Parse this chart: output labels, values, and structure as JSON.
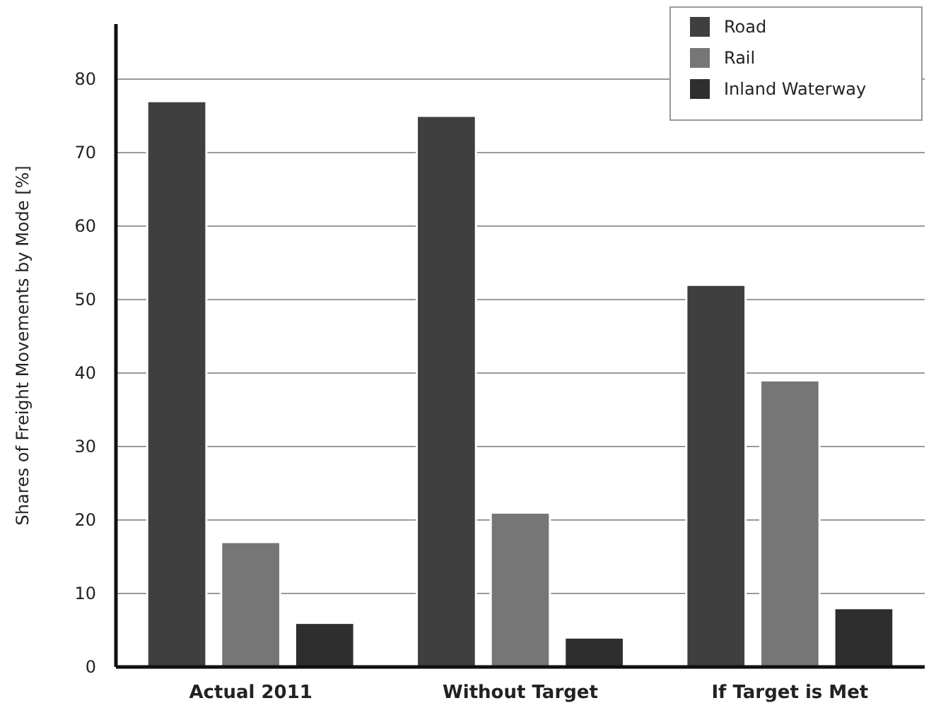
{
  "chart_data": {
    "type": "bar",
    "ylabel": "Shares of Freight Movements by Mode [%]",
    "categories": [
      "Actual 2011",
      "Without Target",
      "If Target is Met"
    ],
    "series": [
      {
        "name": "Road",
        "color": "#3f3f3f",
        "values": [
          77,
          75,
          52
        ]
      },
      {
        "name": "Rail",
        "color": "#767676",
        "values": [
          17,
          21,
          39
        ]
      },
      {
        "name": "Inland Waterway",
        "color": "#2e2e2e",
        "values": [
          6,
          4,
          8
        ]
      }
    ],
    "ylim": [
      0,
      87.5
    ],
    "yticks": [
      0,
      10,
      20,
      30,
      40,
      50,
      60,
      70,
      80
    ],
    "grid": "y",
    "legend": "top right"
  }
}
